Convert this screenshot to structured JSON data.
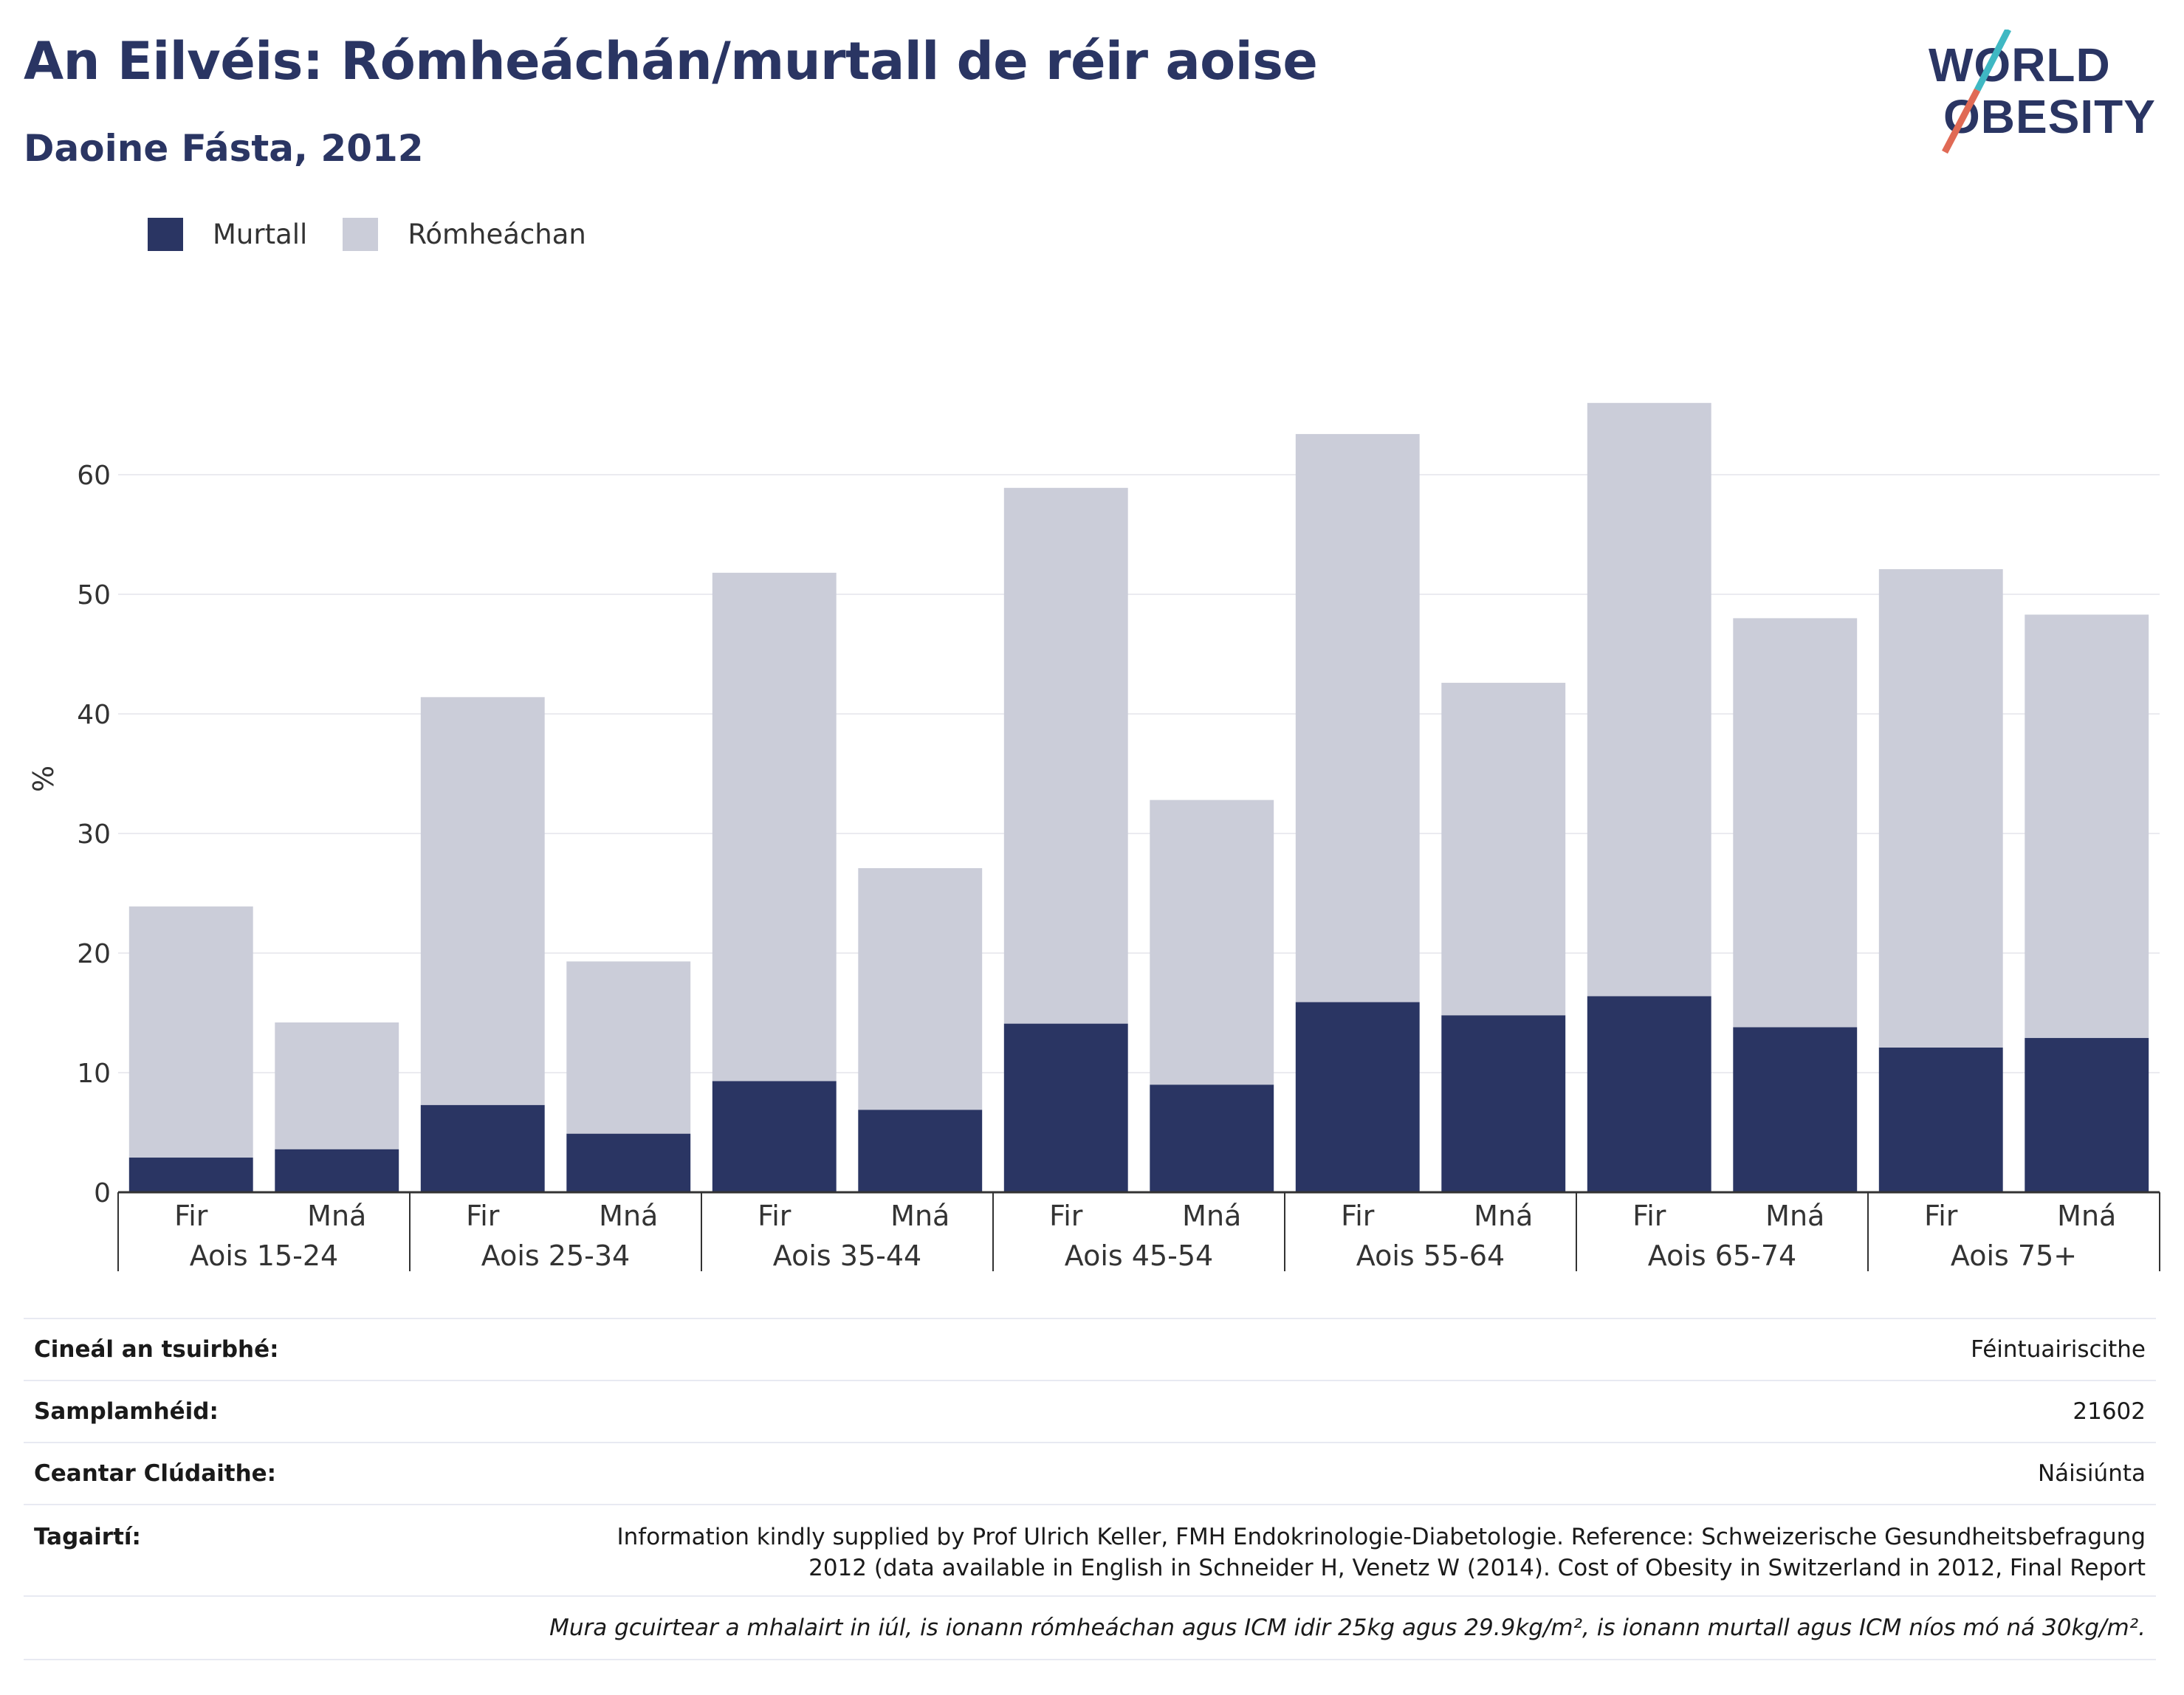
{
  "header": {
    "title": "An Eilvéis: Rómheáchán/murtall de réir aoise",
    "subtitle": "Daoine Fásta, 2012"
  },
  "logo": {
    "line1": "WORLD",
    "line2": "OBESITY",
    "colors": {
      "text": "#2a3563",
      "slash_top": "#3fb8c3",
      "slash_bottom": "#e06a55"
    }
  },
  "legend": [
    {
      "label": "Murtall",
      "color": "#2a3563"
    },
    {
      "label": "Rómheáchan",
      "color": "#cbcdd9"
    }
  ],
  "chart_data": {
    "type": "bar",
    "stacked": true,
    "ylabel": "%",
    "ylim": [
      0,
      70
    ],
    "yticks": [
      0,
      10,
      20,
      30,
      40,
      50,
      60
    ],
    "grid": true,
    "legend_position": "top-left",
    "groups": [
      "Aois 15-24",
      "Aois 25-34",
      "Aois 35-44",
      "Aois 45-54",
      "Aois 55-64",
      "Aois 65-74",
      "Aois 75+"
    ],
    "subcategories": [
      "Fir",
      "Mná"
    ],
    "series": [
      {
        "name": "Murtall",
        "color": "#2a3563",
        "values": [
          2.9,
          3.6,
          7.3,
          4.9,
          9.3,
          6.9,
          14.1,
          9.0,
          15.9,
          14.8,
          16.4,
          13.8,
          12.1,
          12.9
        ]
      },
      {
        "name": "Rómheáchan",
        "color": "#cbcdd9",
        "values": [
          21.0,
          10.6,
          34.1,
          14.4,
          42.5,
          20.2,
          44.8,
          23.8,
          47.5,
          27.8,
          49.6,
          34.2,
          40.0,
          35.4
        ]
      }
    ]
  },
  "info": [
    {
      "key": "Cineál an tsuirbhé:",
      "value": "Féintuairiscithe"
    },
    {
      "key": "Samplamhéid:",
      "value": "21602"
    },
    {
      "key": "Ceantar Clúdaithe:",
      "value": "Náisiúnta"
    },
    {
      "key": "Tagairtí:",
      "value_line1": "Information kindly supplied by Prof Ulrich Keller, FMH Endokrinologie-Diabetologie. Reference: Schweizerische Gesundheitsbefragung",
      "value_line2": "2012 (data available in English in Schneider H, Venetz W (2014). Cost of Obesity in Switzerland in 2012, Final Report"
    }
  ],
  "note": "Mura gcuirtear a mhalairt in iúl, is ionann rómheáchan agus ICM idir 25kg agus 29.9kg/m², is ionann murtall agus ICM níos mó ná 30kg/m²."
}
